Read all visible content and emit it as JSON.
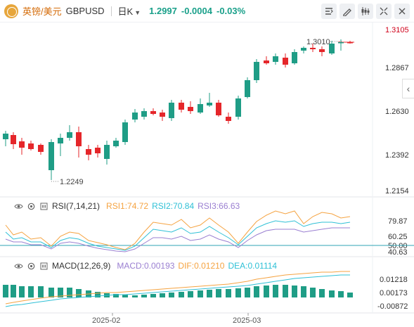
{
  "header": {
    "pair_name": "英镑/美元",
    "symbol": "GBPUSD",
    "timeframe": "日K",
    "last_price": "1.2997",
    "change": "-0.0004",
    "change_pct": "-0.03%"
  },
  "main_chart": {
    "y_ticks": [
      "1.3105",
      "1.2867",
      "1.2630",
      "1.2392",
      "1.2154"
    ],
    "high_label": "1.3010",
    "low_label": "1.2249"
  },
  "rsi": {
    "title": "RSI(7,14,21)",
    "rsi1": "RSI1:74.72",
    "rsi2": "RSI2:70.84",
    "rsi3": "RSI3:66.63",
    "y_ticks": [
      "79.87",
      "60.25",
      "50.00",
      "40.63"
    ]
  },
  "macd": {
    "title": "MACD(12,26,9)",
    "macd": "MACD:0.00193",
    "dif": "DIF:0.01210",
    "dea": "DEA:0.01114",
    "y_ticks": [
      "0.01218",
      "0.00173",
      "-0.00872"
    ]
  },
  "x_axis": [
    "2025-02",
    "2025-03"
  ],
  "colors": {
    "up": "#1f9d86",
    "down": "#e5262a",
    "rsi1": "#f5a341",
    "rsi2": "#2fc0d6",
    "rsi3": "#9a7fd1",
    "accent_orange": "#d46b08"
  }
}
